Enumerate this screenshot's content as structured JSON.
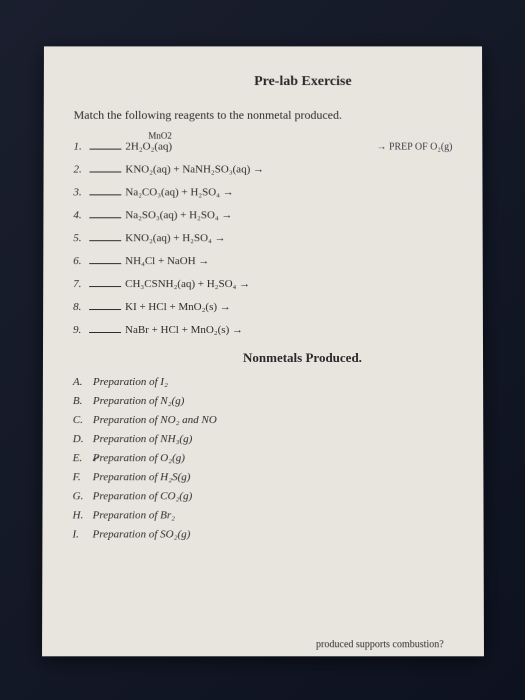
{
  "title": "Pre-lab Exercise",
  "instruction": "Match the following reagents to the nonmetal produced.",
  "catalyst_note": "MnO2",
  "handwritten_note": "→ PREP OF O₂(g)",
  "reagents": [
    {
      "num": "1.",
      "formula": "2H₂O₂(aq)"
    },
    {
      "num": "2.",
      "formula": "KNO₂(aq) + NaNH₂SO₃(aq) →"
    },
    {
      "num": "3.",
      "formula": "Na₂CO₃(aq) + H₂SO₄ →"
    },
    {
      "num": "4.",
      "formula": "Na₂SO₃(aq) + H₂SO₄ →"
    },
    {
      "num": "5.",
      "formula": "KNO₂(aq) + H₂SO₄ →"
    },
    {
      "num": "6.",
      "formula": "NH₄Cl + NaOH →"
    },
    {
      "num": "7.",
      "formula": "CH₃CSNH₂(aq) + H₂SO₄ →"
    },
    {
      "num": "8.",
      "formula": "KI + HCl + MnO₂(s) →"
    },
    {
      "num": "9.",
      "formula": "NaBr + HCl + MnO₂(s) →"
    }
  ],
  "section_head": "Nonmetals Produced.",
  "answers": [
    {
      "letter": "A.",
      "text": "Preparation of I₂"
    },
    {
      "letter": "B.",
      "text": "Preparation of N₂(g)"
    },
    {
      "letter": "C.",
      "text": "Preparation of NO₂ and NO"
    },
    {
      "letter": "D.",
      "text": "Preparation of NH₃(g)"
    },
    {
      "letter": "E.",
      "text": "Preparation of O₂(g)",
      "checked": true
    },
    {
      "letter": "F.",
      "text": "Preparation of H₂S(g)"
    },
    {
      "letter": "G.",
      "text": "Preparation of CO₂(g)"
    },
    {
      "letter": "H.",
      "text": "Preparation of Br₂"
    },
    {
      "letter": "I.",
      "text": "Preparation of SO₂(g)"
    }
  ],
  "footer_fragment": "produced supports combustion?",
  "colors": {
    "page_bg": "#e8e5de",
    "text": "#2a2a2a",
    "surround": "#0d1220"
  }
}
